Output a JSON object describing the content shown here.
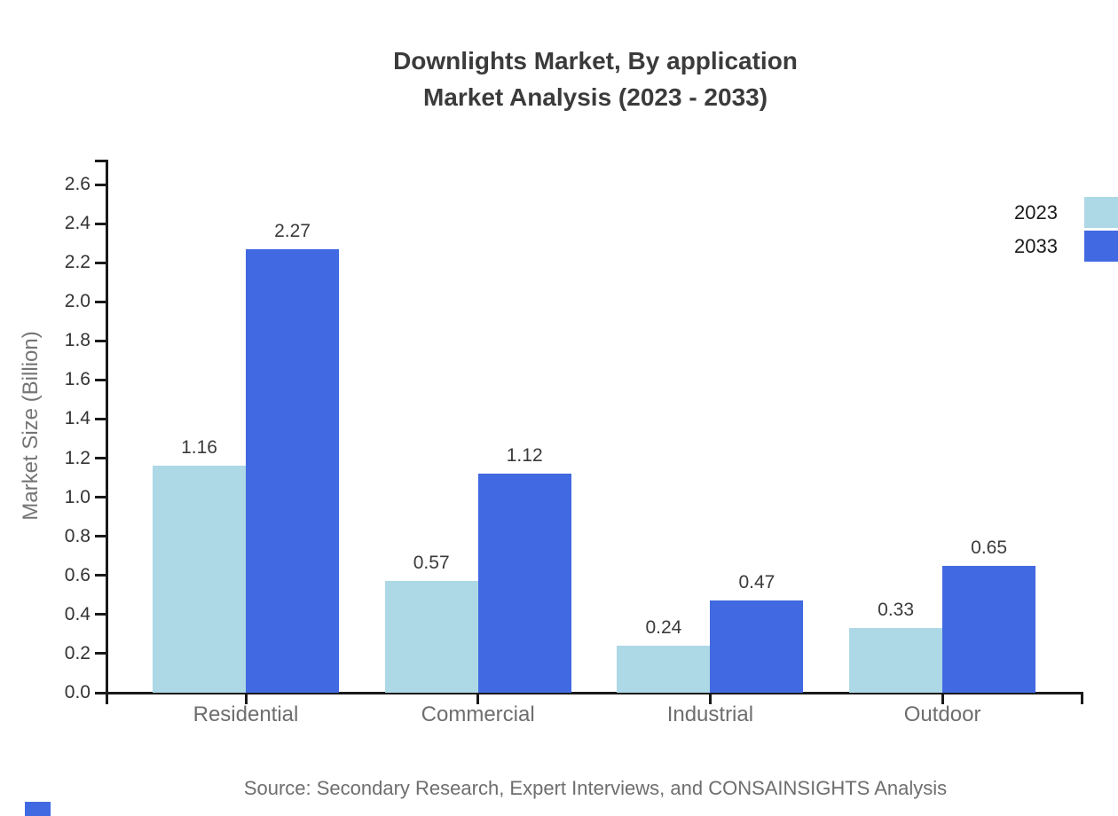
{
  "title": {
    "line1": "Downlights Market, By application",
    "line2": "Market Analysis (2023 - 2033)"
  },
  "source": "Source: Secondary Research, Expert Interviews, and CONSAINSIGHTS Analysis",
  "colors": {
    "series_2023": "#ADD8E6",
    "series_2033": "#4169E1",
    "axis": "#1a1a1a",
    "tick_label": "#333333",
    "category_label": "#6e6e6e",
    "value_label": "#3a3a3a",
    "title": "#3b3b3b",
    "axis_title": "#757575",
    "source_text": "#6e6e6e",
    "brand_mark": "#4169E1"
  },
  "chart_data": {
    "type": "bar",
    "title": "Downlights Market, By application Market Analysis (2023 - 2033)",
    "categories": [
      "Residential",
      "Commercial",
      "Industrial",
      "Outdoor"
    ],
    "series": [
      {
        "name": "2023",
        "color": "#ADD8E6",
        "values": [
          1.16,
          0.57,
          0.24,
          0.33
        ]
      },
      {
        "name": "2033",
        "color": "#4169E1",
        "values": [
          2.27,
          1.12,
          0.47,
          0.65
        ]
      }
    ],
    "xlabel": "",
    "ylabel": "Market Size (Billion)",
    "ylim": [
      0.0,
      2.6
    ],
    "ytick_step": 0.2,
    "ytick_format_decimals": 1,
    "value_label_decimals": 2,
    "grid": false,
    "value_labels": true,
    "legend_position": "top-right"
  },
  "legend": {
    "items": [
      {
        "label": "2023"
      },
      {
        "label": "2033"
      }
    ]
  }
}
